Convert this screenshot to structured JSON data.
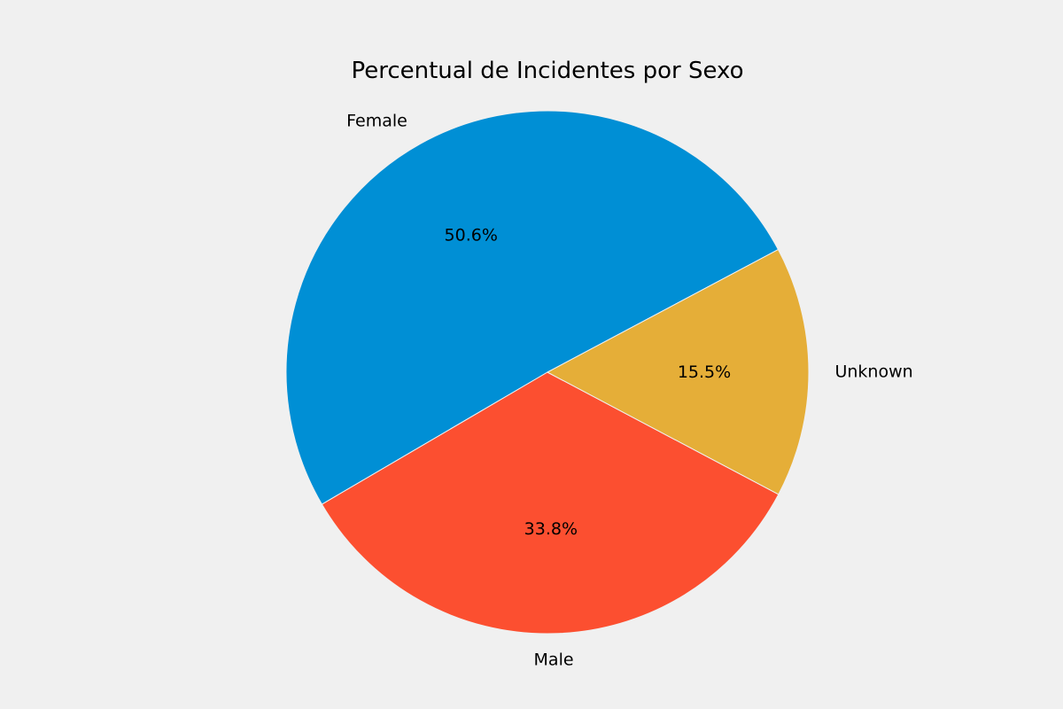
{
  "chart_data": {
    "type": "pie",
    "title": "Percentual de Incidentes por Sexo",
    "categories": [
      "Female",
      "Male",
      "Unknown"
    ],
    "values": [
      50.6,
      33.8,
      15.5
    ],
    "value_labels": [
      "50.6%",
      "33.8%",
      "15.5%"
    ],
    "colors": [
      "#008fd5",
      "#fc4f30",
      "#e5ae38"
    ],
    "background": "#f0f0f0",
    "legend": "none"
  }
}
